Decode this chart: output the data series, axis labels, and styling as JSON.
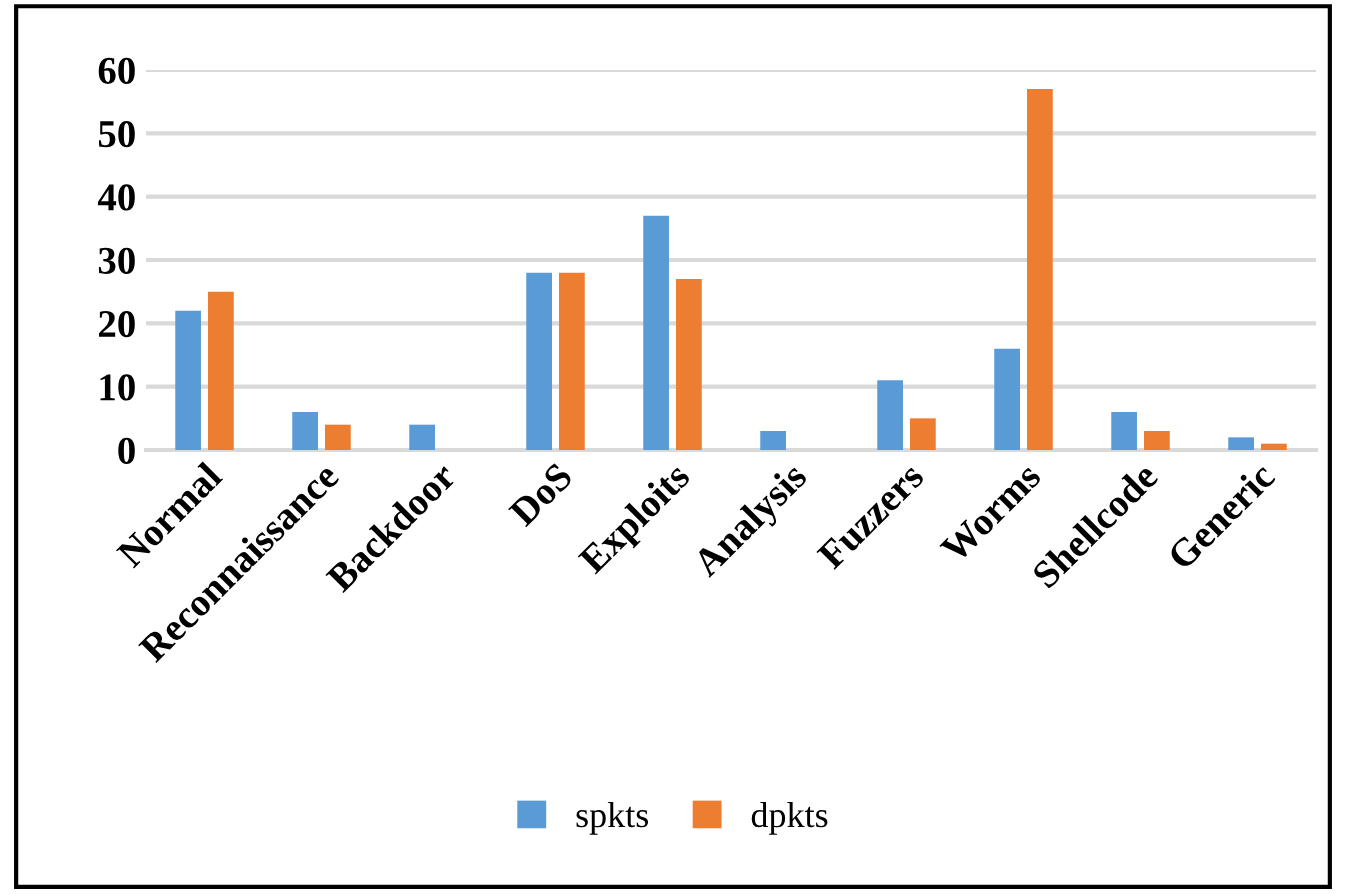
{
  "chart_data": {
    "type": "bar",
    "categories": [
      "Normal",
      "Reconnaissance",
      "Backdoor",
      "DoS",
      "Exploits",
      "Analysis",
      "Fuzzers",
      "Worms",
      "Shellcode",
      "Generic"
    ],
    "series": [
      {
        "name": "spkts",
        "color": "#5b9bd5",
        "values": [
          22,
          6,
          4,
          28,
          37,
          3,
          11,
          16,
          6,
          2
        ]
      },
      {
        "name": "dpkts",
        "color": "#ed7d31",
        "values": [
          25,
          4,
          0,
          28,
          27,
          0,
          5,
          57,
          3,
          1
        ]
      }
    ],
    "ylim": [
      0,
      60
    ],
    "yticks": [
      0,
      10,
      20,
      30,
      40,
      50,
      60
    ],
    "grid": "y",
    "legend": "bottom"
  }
}
